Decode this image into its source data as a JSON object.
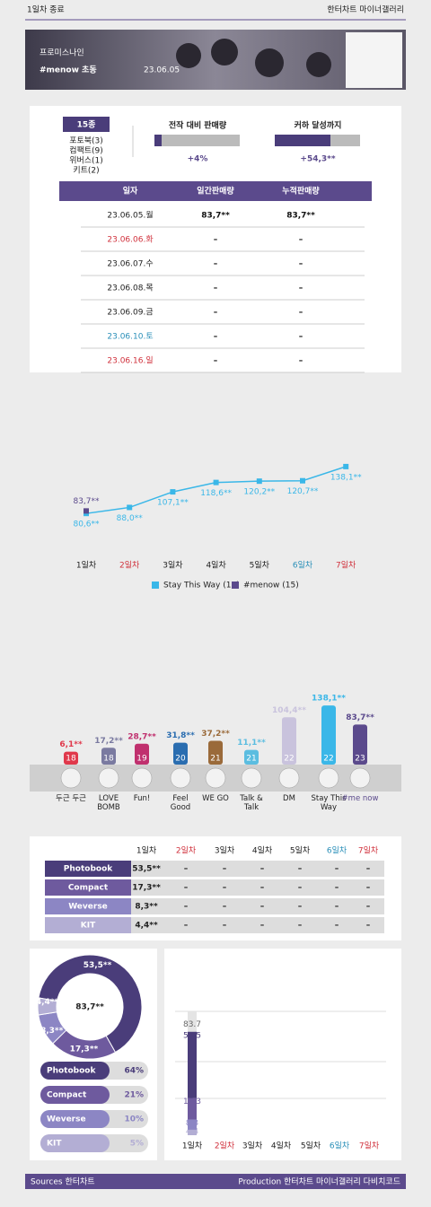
{
  "header": {
    "top_left": "1일차 종료",
    "top_right": "한터차트 마이너갤러리",
    "subtitle": "프로미스나인",
    "title": "#menow 초동",
    "date": "23.06.05"
  },
  "summary": {
    "kinds": "15종",
    "versions": [
      "포토북(3)",
      "컴팩트(9)",
      "위버스(1)",
      "키트(2)"
    ],
    "vs_previous": {
      "label": "전작 대비 판매량",
      "value": "+4%"
    },
    "to_best": {
      "label": "커하 달성까지",
      "value": "+54,3**"
    }
  },
  "daily_table": {
    "headers": [
      "일자",
      "일간판매량",
      "누적판매량"
    ],
    "rows": [
      [
        "23.06.05.월",
        "83,7**",
        "83,7**"
      ],
      [
        "23.06.06.화",
        "–",
        "–"
      ],
      [
        "23.06.07.수",
        "–",
        "–"
      ],
      [
        "23.06.08.목",
        "–",
        "–"
      ],
      [
        "23.06.09.금",
        "–",
        "–"
      ],
      [
        "23.06.10.토",
        "–",
        "–"
      ],
      [
        "23.06.16.일",
        "–",
        "–"
      ]
    ],
    "date_colors": [
      "#222",
      "#d0313c",
      "#222",
      "#222",
      "#222",
      "#2a8fb8",
      "#d0313c"
    ]
  },
  "line_chart": {
    "type": "line",
    "categories": [
      "1일차",
      "2일차",
      "3일차",
      "4일차",
      "5일차",
      "6일차",
      "7일차"
    ],
    "category_colors": [
      "#222",
      "#d0313c",
      "#222",
      "#222",
      "#222",
      "#2a8fb8",
      "#d0313c"
    ],
    "ylim": [
      50,
      215
    ],
    "series": [
      {
        "name": "Stay This Way (16)",
        "color": "#3ab7e8",
        "values": [
          80.6,
          88.0,
          107.1,
          118.6,
          120.2,
          120.7,
          138.1
        ],
        "value_labels": [
          "80,6**",
          "88,0**",
          "107,1**",
          "118,6**",
          "120,2**",
          "120,7**",
          "138,1**"
        ]
      },
      {
        "name": "#menow (15)",
        "color": "#5b4a8c",
        "values": [
          83.7,
          null,
          null,
          null,
          null,
          null,
          null
        ],
        "value_labels": [
          "83,7**",
          null,
          null,
          null,
          null,
          null,
          null
        ]
      }
    ]
  },
  "bar_chart": {
    "type": "bar",
    "categories": [
      "두근 두근",
      "LOVE BOMB",
      "Fun!",
      "Feel Good",
      "WE GO",
      "Talk & Talk",
      "DM",
      "Stay This Way",
      "#me now"
    ],
    "ranks": [
      18,
      18,
      19,
      20,
      21,
      21,
      22,
      22,
      23
    ],
    "values": [
      6.1,
      17.2,
      28.7,
      31.8,
      37.2,
      11.1,
      104.4,
      138.1,
      83.7
    ],
    "value_labels": [
      "6,1**",
      "17,2**",
      "28,7**",
      "31,8**",
      "37,2**",
      "11,1**",
      "104,4**",
      "138,1**",
      "83,7**"
    ],
    "colors": [
      "#e0384b",
      "#7a7aa0",
      "#c0306e",
      "#2a6db0",
      "#9a6a3a",
      "#5bbde0",
      "#c9c3dd",
      "#3ab7e8",
      "#5b4a8c"
    ]
  },
  "version_table": {
    "columns": [
      "1일차",
      "2일차",
      "3일차",
      "4일차",
      "5일차",
      "6일차",
      "7일차"
    ],
    "column_colors": [
      "#222",
      "#d0313c",
      "#222",
      "#222",
      "#222",
      "#2a8fb8",
      "#d0313c"
    ],
    "rows": [
      {
        "name": "Photobook",
        "color": "#4a3d7a",
        "values": [
          "53,5**",
          "–",
          "–",
          "–",
          "–",
          "–",
          "–"
        ]
      },
      {
        "name": "Compact",
        "color": "#6e5a9e",
        "values": [
          "17,3**",
          "–",
          "–",
          "–",
          "–",
          "–",
          "–"
        ]
      },
      {
        "name": "Weverse",
        "color": "#8c86c4",
        "values": [
          "8,3**",
          "–",
          "–",
          "–",
          "–",
          "–",
          "–"
        ]
      },
      {
        "name": "KIT",
        "color": "#b3aed4",
        "values": [
          "4,4**",
          "–",
          "–",
          "–",
          "–",
          "–",
          "–"
        ]
      }
    ]
  },
  "donut": {
    "type": "pie",
    "total_label": "83,7**",
    "names": [
      "Photobook",
      "Compact",
      "Weverse",
      "KIT"
    ],
    "values": [
      53.5,
      17.3,
      8.3,
      4.4
    ],
    "value_labels": [
      "53,5**",
      "17,3**",
      "8,3**",
      "4,4**"
    ],
    "colors": [
      "#4a3d7a",
      "#6e5a9e",
      "#8c86c4",
      "#b3aed4"
    ],
    "shares": [
      64,
      21,
      10,
      5
    ],
    "share_labels": [
      "64%",
      "21%",
      "10%",
      "5%"
    ]
  },
  "mini_chart": {
    "type": "bar",
    "categories": [
      "1일차",
      "2일차",
      "3일차",
      "4일차",
      "5일차",
      "6일차",
      "7일차"
    ],
    "category_colors": [
      "#222",
      "#d0313c",
      "#222",
      "#222",
      "#222",
      "#2a8fb8",
      "#d0313c"
    ],
    "ylim": [
      0,
      100
    ],
    "total": 83.7,
    "segments": [
      53.5,
      17.3,
      8.3,
      4.4
    ],
    "colors": [
      "#4a3d7a",
      "#6e5a9e",
      "#8c86c4",
      "#b3aed4"
    ]
  },
  "footer": {
    "left": "Sources 한터차트",
    "right": "Production 한터차트 마이너갤러리 다비치코드"
  }
}
